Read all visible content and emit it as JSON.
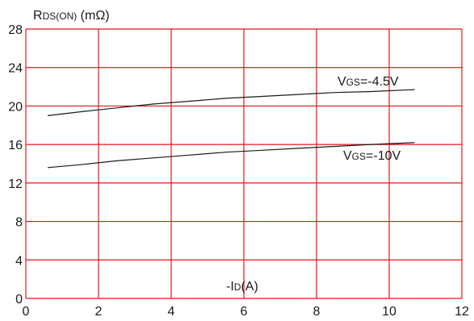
{
  "chart_data": {
    "type": "line",
    "ylabel": {
      "main": "R",
      "sub": "DS(ON)",
      "unit": " (mΩ)"
    },
    "xlabel": {
      "pre": "-I",
      "sub": "D",
      "unit": "(A)"
    },
    "xlim": [
      0,
      12
    ],
    "ylim": [
      0,
      28
    ],
    "xticks": [
      0,
      2,
      4,
      6,
      8,
      10,
      12
    ],
    "yticks": [
      0,
      4,
      8,
      12,
      16,
      20,
      24,
      28
    ],
    "grid": true,
    "grid_color": "#e8141c",
    "line_color": "#1a1a1a",
    "series": [
      {
        "label": {
          "main": "V",
          "sub": "GS",
          "rest": "=-4.5V"
        },
        "x": [
          0.6,
          1.5,
          2.5,
          3.5,
          4.5,
          5.5,
          6.5,
          7.5,
          8.5,
          9.5,
          10.7
        ],
        "y": [
          19.0,
          19.4,
          19.8,
          20.2,
          20.5,
          20.8,
          21.0,
          21.2,
          21.4,
          21.5,
          21.7
        ]
      },
      {
        "label": {
          "main": "V",
          "sub": "GS",
          "rest": "=-10V"
        },
        "x": [
          0.6,
          1.5,
          2.5,
          3.5,
          4.5,
          5.5,
          6.5,
          7.5,
          8.5,
          9.5,
          10.7
        ],
        "y": [
          13.6,
          13.9,
          14.3,
          14.6,
          14.9,
          15.2,
          15.4,
          15.6,
          15.8,
          16.0,
          16.2
        ]
      }
    ]
  }
}
